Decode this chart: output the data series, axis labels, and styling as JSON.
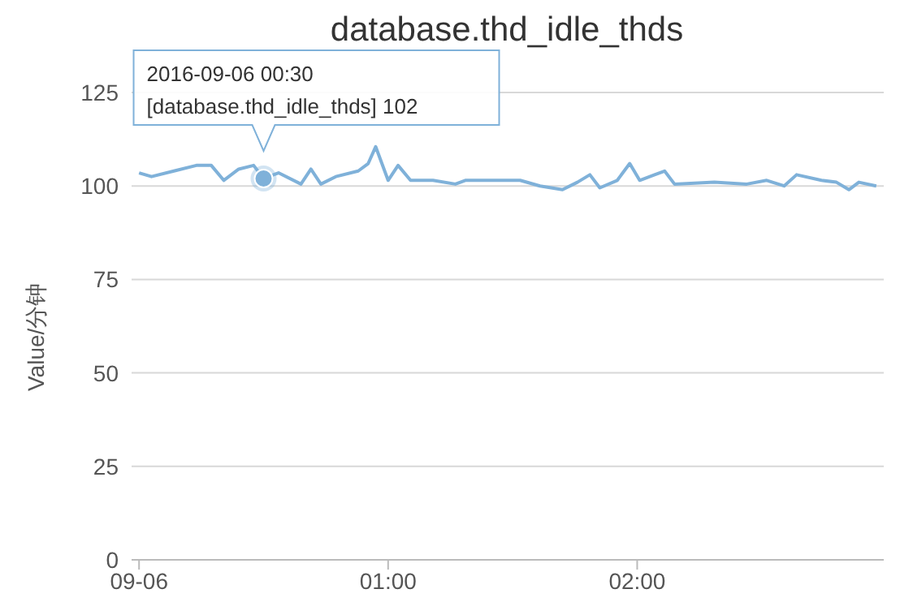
{
  "chart_data": {
    "type": "line",
    "title": "database.thd_idle_thds",
    "ylabel": "Value/分钟",
    "x": [
      0,
      0.05,
      0.14,
      0.23,
      0.29,
      0.34,
      0.4,
      0.46,
      0.5,
      0.56,
      0.65,
      0.69,
      0.73,
      0.79,
      0.88,
      0.92,
      0.95,
      1,
      1.04,
      1.09,
      1.18,
      1.27,
      1.31,
      1.53,
      1.61,
      1.7,
      1.76,
      1.81,
      1.85,
      1.92,
      1.97,
      2.01,
      2.07,
      2.11,
      2.15,
      2.31,
      2.44,
      2.52,
      2.59,
      2.64,
      2.74,
      2.8,
      2.85,
      2.89,
      2.96
    ],
    "series": [
      {
        "color": "#7fb1d9",
        "values": [
          103.5,
          102.5,
          104,
          105.5,
          105.5,
          101.5,
          104.5,
          105.5,
          102,
          103.5,
          100.5,
          104.5,
          100.5,
          102.5,
          104,
          106,
          110.5,
          101.5,
          105.5,
          101.5,
          101.5,
          100.5,
          101.5,
          101.5,
          100,
          99,
          101,
          103,
          99.5,
          101.5,
          106,
          101.5,
          103,
          104,
          100.5,
          101,
          100.5,
          101.5,
          100,
          103,
          101.5,
          101,
          99,
          101,
          100
        ]
      }
    ],
    "xlim": [
      -0.03,
      2.99
    ],
    "xticks": [
      {
        "value": 0,
        "label": "09-06"
      },
      {
        "value": 1,
        "label": "01:00"
      },
      {
        "value": 2,
        "label": "02:00"
      }
    ],
    "ylim": [
      0,
      125
    ],
    "yticks": [
      0,
      25,
      50,
      75,
      100,
      125
    ],
    "grid": "y",
    "marker": "none",
    "legend": false,
    "annotations": [
      {
        "text": "2016-09-06 00:30\n[database.thd_idle_thds] 102",
        "x": 0.5,
        "y": 102
      }
    ]
  }
}
